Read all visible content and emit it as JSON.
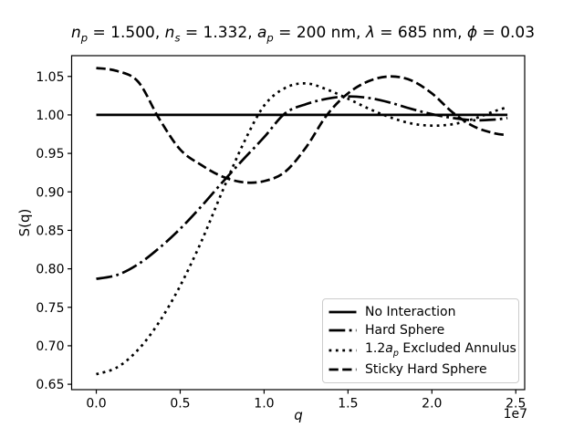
{
  "figure": {
    "bg": "#ffffff",
    "line_color": "#000000",
    "ylabel": "S(q)",
    "offset_text": "1e7",
    "title_segments": [
      {
        "t": "n",
        "i": 1
      },
      {
        "t": "p",
        "i": 1,
        "s": 1
      },
      {
        "t": " = 1.500, "
      },
      {
        "t": "n",
        "i": 1
      },
      {
        "t": "s",
        "i": 1,
        "s": 1
      },
      {
        "t": " = 1.332, "
      },
      {
        "t": "a",
        "i": 1
      },
      {
        "t": "p",
        "i": 1,
        "s": 1
      },
      {
        "t": " = 200 nm, "
      },
      {
        "t": "λ",
        "i": 1
      },
      {
        "t": " = 685 nm, "
      },
      {
        "t": "ϕ",
        "i": 1
      },
      {
        "t": " = 0.03"
      }
    ],
    "xlabel_segments": [
      {
        "t": "q",
        "i": 1
      }
    ]
  },
  "legend": {
    "items": [
      {
        "linestyle": "solid",
        "label_segments": [
          {
            "t": "No Interaction"
          }
        ]
      },
      {
        "linestyle": "dashdot",
        "label_segments": [
          {
            "t": "Hard Sphere"
          }
        ]
      },
      {
        "linestyle": "dotted",
        "label_segments": [
          {
            "t": "1.2"
          },
          {
            "t": "a",
            "i": 1
          },
          {
            "t": "p",
            "i": 1,
            "s": 1
          },
          {
            "t": " Excluded Annulus"
          }
        ]
      },
      {
        "linestyle": "dashed",
        "label_segments": [
          {
            "t": "Sticky Hard Sphere"
          }
        ]
      }
    ]
  },
  "chart_data": {
    "type": "line",
    "title": "n_p = 1.500, n_s = 1.332, a_p = 200 nm, λ = 685 nm, ϕ = 0.03",
    "xlabel": "q",
    "ylabel": "S(q)",
    "x_unit": "1e7",
    "xlim": [
      -0.147,
      2.553
    ],
    "ylim": [
      0.643,
      1.077
    ],
    "xticks": [
      0.0,
      0.5,
      1.0,
      1.5,
      2.0,
      2.5
    ],
    "xtick_labels": [
      "0.0",
      "0.5",
      "1.0",
      "1.5",
      "2.0",
      "2.5"
    ],
    "yticks": [
      0.65,
      0.7,
      0.75,
      0.8,
      0.85,
      0.9,
      0.95,
      1.0,
      1.05
    ],
    "ytick_labels": [
      "0.65",
      "0.70",
      "0.75",
      "0.80",
      "0.85",
      "0.90",
      "0.95",
      "1.00",
      "1.05"
    ],
    "grid": false,
    "legend_position": "lower right",
    "series": [
      {
        "name": "No Interaction",
        "linestyle": "solid",
        "color": "#000000",
        "x": [
          0,
          2.45
        ],
        "y": [
          1.0,
          1.0
        ]
      },
      {
        "name": "Hard Sphere",
        "linestyle": "dashdot",
        "color": "#000000",
        "x": [
          0,
          0.125,
          0.25,
          0.375,
          0.5,
          0.625,
          0.75,
          0.875,
          1.0,
          1.125,
          1.25,
          1.375,
          1.5,
          1.625,
          1.75,
          1.875,
          2.0,
          2.125,
          2.25,
          2.375,
          2.45
        ],
        "y": [
          0.787,
          0.792,
          0.806,
          0.827,
          0.852,
          0.881,
          0.912,
          0.942,
          0.971,
          1.002,
          1.014,
          1.021,
          1.024,
          1.022,
          1.016,
          1.008,
          1.001,
          0.996,
          0.993,
          0.994,
          0.996
        ]
      },
      {
        "name": "1.2a_p Excluded Annulus",
        "linestyle": "dotted",
        "color": "#000000",
        "x": [
          0,
          0.125,
          0.25,
          0.375,
          0.5,
          0.625,
          0.75,
          0.875,
          1.0,
          1.125,
          1.25,
          1.375,
          1.5,
          1.625,
          1.75,
          1.875,
          2.0,
          2.125,
          2.25,
          2.375,
          2.45
        ],
        "y": [
          0.663,
          0.672,
          0.695,
          0.731,
          0.778,
          0.835,
          0.9,
          0.962,
          1.012,
          1.035,
          1.041,
          1.033,
          1.021,
          1.008,
          0.997,
          0.989,
          0.986,
          0.988,
          0.995,
          1.005,
          1.01
        ]
      },
      {
        "name": "Sticky Hard Sphere",
        "linestyle": "dashed",
        "color": "#000000",
        "x": [
          0,
          0.125,
          0.25,
          0.375,
          0.5,
          0.625,
          0.75,
          0.875,
          1.0,
          1.125,
          1.25,
          1.375,
          1.5,
          1.625,
          1.75,
          1.875,
          2.0,
          2.125,
          2.25,
          2.375,
          2.45
        ],
        "y": [
          1.061,
          1.057,
          1.043,
          0.995,
          0.955,
          0.935,
          0.92,
          0.9125,
          0.914,
          0.926,
          0.958,
          1.0,
          1.028,
          1.044,
          1.05,
          1.045,
          1.028,
          1.003,
          0.985,
          0.976,
          0.974
        ]
      }
    ]
  }
}
